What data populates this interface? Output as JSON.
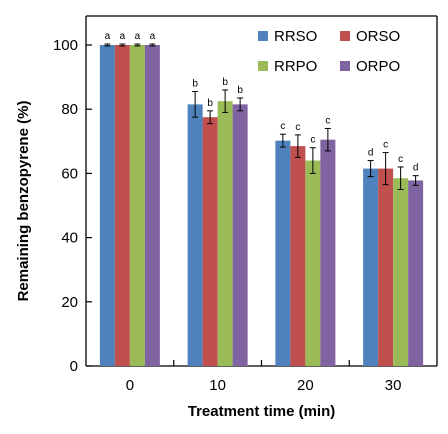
{
  "chart_data": {
    "type": "bar",
    "xlabel": "Treatment time (min)",
    "ylabel": "Remaining benzopyrene (%)",
    "ylim": [
      0,
      100
    ],
    "yticks": [
      0,
      20,
      40,
      60,
      80,
      100
    ],
    "categories": [
      "0",
      "10",
      "20",
      "30"
    ],
    "grid": false,
    "legend_position": "top-right",
    "series": [
      {
        "name": "RRSO",
        "color": "#4f81bd",
        "values": [
          100,
          81.5,
          70.2,
          61.5
        ],
        "errors": [
          0.3,
          4.0,
          2.0,
          2.5
        ],
        "labels": [
          "a",
          "b",
          "c",
          "d"
        ]
      },
      {
        "name": "ORSO",
        "color": "#c0504d",
        "values": [
          100,
          77.5,
          68.5,
          61.5
        ],
        "errors": [
          0.3,
          2.0,
          3.5,
          5.0
        ],
        "labels": [
          "a",
          "b",
          "c",
          "c"
        ]
      },
      {
        "name": "RRPO",
        "color": "#9bbb59",
        "values": [
          100,
          82.5,
          64.0,
          58.5
        ],
        "errors": [
          0.3,
          3.5,
          4.0,
          3.5
        ],
        "labels": [
          "a",
          "b",
          "c",
          "c"
        ]
      },
      {
        "name": "ORPO",
        "color": "#8064a2",
        "values": [
          100,
          81.5,
          70.5,
          57.8
        ],
        "errors": [
          0.3,
          2.0,
          3.5,
          1.5
        ],
        "labels": [
          "a",
          "b",
          "c",
          "d"
        ]
      }
    ]
  }
}
